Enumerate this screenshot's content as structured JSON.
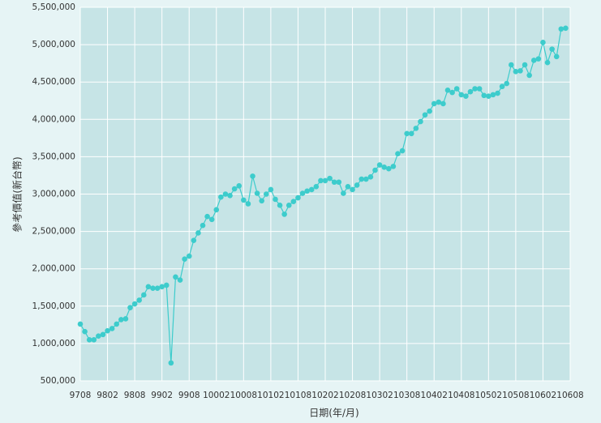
{
  "chart_data": {
    "type": "line",
    "xlabel": "日期(年/月)",
    "ylabel": "參考價值(新台幣)",
    "categories": [
      "9708",
      null,
      null,
      null,
      null,
      null,
      "9802",
      null,
      null,
      null,
      null,
      null,
      "9808",
      null,
      null,
      null,
      null,
      null,
      "9902",
      null,
      null,
      null,
      null,
      null,
      "9908",
      null,
      null,
      null,
      null,
      null,
      "10002",
      null,
      null,
      null,
      null,
      null,
      "10008",
      null,
      null,
      null,
      null,
      null,
      "10102",
      null,
      null,
      null,
      null,
      null,
      "10108",
      null,
      null,
      null,
      null,
      null,
      "10202",
      null,
      null,
      null,
      null,
      null,
      "10208",
      null,
      null,
      null,
      null,
      null,
      "10302",
      null,
      null,
      null,
      null,
      null,
      "10308",
      null,
      null,
      null,
      null,
      null,
      "10402",
      null,
      null,
      null,
      null,
      null,
      "10408",
      null,
      null,
      null,
      null,
      null,
      "10502",
      null,
      null,
      null,
      null,
      null,
      "10508",
      null,
      null,
      null,
      null,
      null,
      "10602",
      null,
      null,
      null,
      null,
      null,
      "10608"
    ],
    "series": [
      {
        "name": "參考價值",
        "color": "#3dcccc",
        "values": [
          1260000,
          1160000,
          1050000,
          1050000,
          1100000,
          1120000,
          1170000,
          1200000,
          1260000,
          1320000,
          1330000,
          1480000,
          1530000,
          1580000,
          1650000,
          1760000,
          1740000,
          1740000,
          1760000,
          1780000,
          740000,
          1890000,
          1850000,
          2130000,
          2170000,
          2380000,
          2480000,
          2580000,
          2700000,
          2660000,
          2790000,
          2960000,
          3000000,
          2980000,
          3070000,
          3110000,
          2920000,
          2870000,
          3240000,
          3010000,
          2910000,
          3000000,
          3060000,
          2930000,
          2850000,
          2730000,
          2850000,
          2900000,
          2950000,
          3010000,
          3040000,
          3060000,
          3100000,
          3180000,
          3180000,
          3210000,
          3160000,
          3160000,
          3010000,
          3100000,
          3060000,
          3120000,
          3200000,
          3200000,
          3230000,
          3320000,
          3390000,
          3360000,
          3340000,
          3370000,
          3540000,
          3580000,
          3810000,
          3810000,
          3880000,
          3970000,
          4060000,
          4110000,
          4210000,
          4230000,
          4210000,
          4390000,
          4360000,
          4410000,
          4330000,
          4310000,
          4370000,
          4410000,
          4410000,
          4320000,
          4310000,
          4330000,
          4350000,
          4440000,
          4480000,
          4730000,
          4640000,
          4650000,
          4730000,
          4590000,
          4790000,
          4810000,
          5030000,
          4760000,
          4940000,
          4840000,
          5210000,
          5220000,
          null
        ]
      }
    ],
    "ylim": [
      500000,
      5500000
    ],
    "yticks": [
      {
        "value": 500000,
        "label": "500,000"
      },
      {
        "value": 1000000,
        "label": "1,000,000"
      },
      {
        "value": 1500000,
        "label": "1,500,000"
      },
      {
        "value": 2000000,
        "label": "2,000,000"
      },
      {
        "value": 2500000,
        "label": "2,500,000"
      },
      {
        "value": 3000000,
        "label": "3,000,000"
      },
      {
        "value": 3500000,
        "label": "3,500,000"
      },
      {
        "value": 4000000,
        "label": "4,000,000"
      },
      {
        "value": 4500000,
        "label": "4,500,000"
      },
      {
        "value": 5000000,
        "label": "5,000,000"
      },
      {
        "value": 5500000,
        "label": "5,500,000"
      }
    ],
    "grid": true
  }
}
